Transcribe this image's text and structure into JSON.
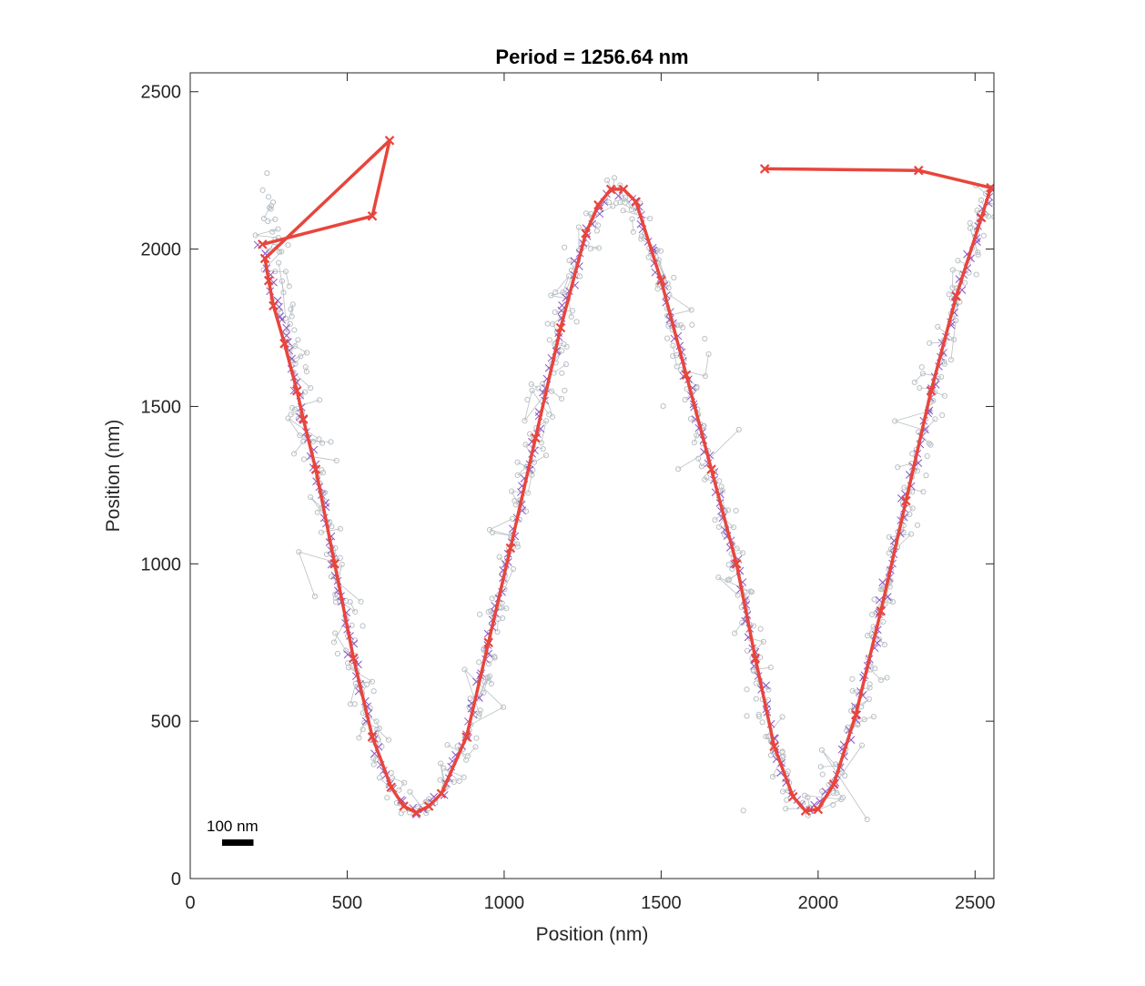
{
  "chart_data": {
    "type": "scatter",
    "title": "Period = 1256.64 nm",
    "xlabel": "Position (nm)",
    "ylabel": "Position (nm)",
    "xlim": [
      0,
      2560
    ],
    "ylim": [
      0,
      2560
    ],
    "xticks": [
      0,
      500,
      1000,
      1500,
      2000,
      2500
    ],
    "yticks": [
      0,
      500,
      1000,
      1500,
      2000,
      2500
    ],
    "grid": false,
    "box": true,
    "scale_bar": {
      "label": "100 nm",
      "length": 100
    },
    "colors": {
      "raw_localizations": "#b9c0c4",
      "filtered_localizations": "#8a55c4",
      "trajectory": "#e8453c",
      "axes": "#262626"
    },
    "series": [
      {
        "marker": "circle",
        "style": "scattered localization cloud along the sinusoidal path",
        "path": [
          [
            230,
            2200
          ],
          [
            260,
            2050
          ],
          [
            300,
            1850
          ],
          [
            340,
            1600
          ],
          [
            400,
            1300
          ],
          [
            460,
            1000
          ],
          [
            520,
            700
          ],
          [
            580,
            450
          ],
          [
            640,
            300
          ],
          [
            720,
            210
          ],
          [
            800,
            280
          ],
          [
            880,
            450
          ],
          [
            950,
            750
          ],
          [
            1020,
            1050
          ],
          [
            1100,
            1400
          ],
          [
            1180,
            1750
          ],
          [
            1260,
            2050
          ],
          [
            1340,
            2200
          ],
          [
            1420,
            2150
          ],
          [
            1500,
            1900
          ],
          [
            1580,
            1600
          ],
          [
            1660,
            1300
          ],
          [
            1740,
            1000
          ],
          [
            1800,
            700
          ],
          [
            1860,
            400
          ],
          [
            1920,
            250
          ],
          [
            1980,
            210
          ],
          [
            2050,
            300
          ],
          [
            2120,
            500
          ],
          [
            2200,
            850
          ],
          [
            2280,
            1200
          ],
          [
            2360,
            1550
          ],
          [
            2440,
            1850
          ],
          [
            2520,
            2100
          ],
          [
            2555,
            2200
          ]
        ]
      },
      {
        "marker": "x",
        "style": "filtered localizations along the path",
        "path": [
          [
            230,
            2020
          ],
          [
            260,
            1900
          ],
          [
            300,
            1750
          ],
          [
            340,
            1550
          ],
          [
            400,
            1300
          ],
          [
            460,
            1000
          ],
          [
            520,
            700
          ],
          [
            580,
            450
          ],
          [
            640,
            290
          ],
          [
            720,
            210
          ],
          [
            800,
            270
          ],
          [
            880,
            450
          ],
          [
            950,
            750
          ],
          [
            1020,
            1050
          ],
          [
            1100,
            1400
          ],
          [
            1180,
            1750
          ],
          [
            1260,
            2050
          ],
          [
            1340,
            2190
          ],
          [
            1420,
            2150
          ],
          [
            1500,
            1900
          ],
          [
            1580,
            1600
          ],
          [
            1660,
            1300
          ],
          [
            1740,
            1000
          ],
          [
            1800,
            700
          ],
          [
            1860,
            420
          ],
          [
            1920,
            260
          ],
          [
            1980,
            215
          ],
          [
            2050,
            300
          ],
          [
            2120,
            520
          ],
          [
            2200,
            850
          ],
          [
            2280,
            1200
          ],
          [
            2360,
            1550
          ],
          [
            2440,
            1850
          ],
          [
            2520,
            2100
          ],
          [
            2555,
            2190
          ]
        ]
      },
      {
        "marker": "x",
        "line": true,
        "style": "averaged trajectory",
        "x": [
          230,
          580,
          635,
          238,
          250,
          265,
          300,
          340,
          360,
          400,
          460,
          520,
          580,
          640,
          680,
          720,
          760,
          800,
          880,
          950,
          1020,
          1100,
          1180,
          1260,
          1300,
          1340,
          1380,
          1420,
          1500,
          1580,
          1660,
          1740,
          1800,
          1860,
          1920,
          1960,
          2000,
          2050,
          2120,
          2200,
          2280,
          2360,
          2440,
          2520,
          2550,
          2320,
          1830
        ],
        "y": [
          2015,
          2105,
          2345,
          1970,
          1900,
          1820,
          1700,
          1550,
          1460,
          1300,
          1000,
          700,
          450,
          290,
          230,
          210,
          230,
          270,
          450,
          750,
          1050,
          1400,
          1750,
          2050,
          2140,
          2190,
          2190,
          2150,
          1900,
          1600,
          1300,
          1000,
          700,
          420,
          260,
          215,
          220,
          300,
          520,
          850,
          1200,
          1550,
          1850,
          2100,
          2195,
          2250,
          2255
        ]
      }
    ]
  }
}
